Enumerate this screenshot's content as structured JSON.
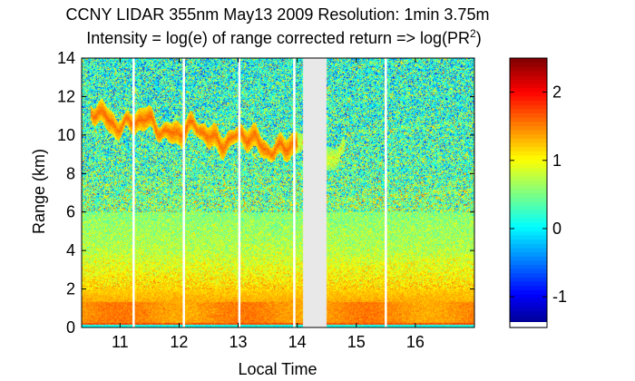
{
  "chart_data": {
    "type": "heatmap",
    "title_line1": "CCNY LIDAR 355nm May13 2009 Resolution: 1min 3.75m",
    "title_line2_prefix": "Intensity = log(e) of range corrected return => log(PR",
    "title_line2_sup": "2",
    "title_line2_suffix": ")",
    "xlabel": "Local Time",
    "ylabel": "Range (km)",
    "xlim": [
      10.35,
      17.0
    ],
    "ylim": [
      0,
      14
    ],
    "xticks": [
      11,
      12,
      13,
      14,
      15,
      16
    ],
    "yticks": [
      0,
      2,
      4,
      6,
      8,
      10,
      12,
      14
    ],
    "colorbar": {
      "ticks": [
        -1,
        0,
        1,
        2
      ],
      "range": [
        -1.45,
        2.5
      ],
      "colormap": "jet"
    },
    "data_gaps": [
      [
        14.1,
        14.5
      ]
    ],
    "missing_profiles": [
      11.23,
      12.08,
      13.02,
      13.95,
      15.5
    ],
    "cloud_layer": {
      "base_km": 9.8,
      "top_km": 12.0,
      "start": 10.5,
      "end": 14.8
    },
    "boundary_layer_top_km": 1.3,
    "colors": {
      "gap": "#e8e8e8",
      "missing_line": "#ffffff",
      "frame": "#000000"
    }
  }
}
